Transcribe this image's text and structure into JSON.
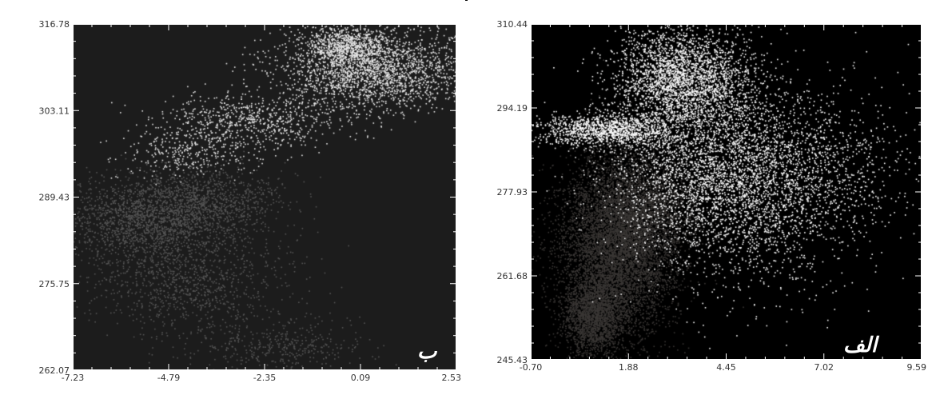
{
  "chart_data": [
    {
      "id": "panel-b",
      "type": "scatter",
      "panel_label": "ب",
      "xlim": [
        -7.23,
        2.53
      ],
      "ylim": [
        262.07,
        316.78
      ],
      "x_ticks": [
        "-7.23",
        "-4.79",
        "-2.35",
        "0.09",
        "2.53"
      ],
      "y_ticks": [
        "316.78",
        "303.11",
        "289.43",
        "275.75",
        "262.07"
      ],
      "background_color": "#1c1c1c",
      "series": [
        {
          "color": "#e8e8e8",
          "clusters": [
            {
              "cx": 0.4,
              "cy": 309.5,
              "sx": 1.2,
              "sy": 3.2,
              "n": 2200
            },
            {
              "cx": -0.3,
              "cy": 313.5,
              "sx": 0.5,
              "sy": 1.5,
              "n": 700
            },
            {
              "cx": -2.8,
              "cy": 301.5,
              "sx": 1.2,
              "sy": 2.2,
              "n": 700
            },
            {
              "cx": -4.2,
              "cy": 296.5,
              "sx": 0.9,
              "sy": 2.0,
              "n": 300
            }
          ]
        },
        {
          "color": "#565656",
          "clusters": [
            {
              "cx": -5.3,
              "cy": 286.0,
              "sx": 1.1,
              "sy": 3.5,
              "n": 1800
            },
            {
              "cx": -3.7,
              "cy": 289.0,
              "sx": 0.9,
              "sy": 2.6,
              "n": 800
            },
            {
              "cx": -4.2,
              "cy": 276.0,
              "sx": 1.3,
              "sy": 4.0,
              "n": 1000
            },
            {
              "cx": -2.0,
              "cy": 266.0,
              "sx": 1.2,
              "sy": 2.0,
              "n": 400
            }
          ]
        }
      ]
    },
    {
      "id": "panel-a",
      "type": "scatter",
      "panel_label": "الف",
      "xlim": [
        -0.7,
        9.59
      ],
      "ylim": [
        245.43,
        310.44
      ],
      "x_ticks": [
        "-0.70",
        "1.88",
        "4.45",
        "7.02",
        "9.59"
      ],
      "y_ticks": [
        "310.44",
        "294.19",
        "277.93",
        "261.68",
        "245.43"
      ],
      "background_color": "#000000",
      "series": [
        {
          "color": "#ffffff",
          "clusters": [
            {
              "cx": 3.3,
              "cy": 300.0,
              "sx": 0.9,
              "sy": 5.0,
              "n": 2600
            },
            {
              "cx": 1.3,
              "cy": 290.0,
              "sx": 0.9,
              "sy": 1.6,
              "n": 1200
            },
            {
              "cx": 3.9,
              "cy": 283.0,
              "sx": 1.3,
              "sy": 8.5,
              "n": 2400
            },
            {
              "cx": 5.3,
              "cy": 278.0,
              "sx": 1.6,
              "sy": 9.5,
              "n": 1900
            },
            {
              "cx": 6.8,
              "cy": 285.0,
              "sx": 1.2,
              "sy": 7.0,
              "n": 500
            }
          ]
        },
        {
          "color": "#3a3735",
          "clusters": [
            {
              "cx": 1.6,
              "cy": 268.0,
              "sx": 0.75,
              "sy": 9.0,
              "n": 6500
            },
            {
              "cx": 0.9,
              "cy": 254.0,
              "sx": 0.4,
              "sy": 4.0,
              "n": 1800
            },
            {
              "cx": 2.4,
              "cy": 275.0,
              "sx": 0.7,
              "sy": 4.5,
              "n": 1200
            }
          ]
        }
      ]
    }
  ]
}
